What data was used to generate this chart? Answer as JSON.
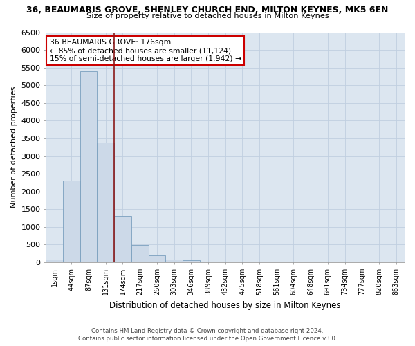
{
  "title1": "36, BEAUMARIS GROVE, SHENLEY CHURCH END, MILTON KEYNES, MK5 6EN",
  "title2": "Size of property relative to detached houses in Milton Keynes",
  "xlabel": "Distribution of detached houses by size in Milton Keynes",
  "ylabel": "Number of detached properties",
  "categories": [
    "1sqm",
    "44sqm",
    "87sqm",
    "131sqm",
    "174sqm",
    "217sqm",
    "260sqm",
    "303sqm",
    "346sqm",
    "389sqm",
    "432sqm",
    "475sqm",
    "518sqm",
    "561sqm",
    "604sqm",
    "648sqm",
    "691sqm",
    "734sqm",
    "777sqm",
    "820sqm",
    "863sqm"
  ],
  "values": [
    75,
    2300,
    5400,
    3380,
    1310,
    480,
    190,
    80,
    55,
    10,
    10,
    10,
    0,
    0,
    0,
    0,
    0,
    0,
    0,
    0,
    0
  ],
  "bar_color": "#ccd9e8",
  "bar_edge_color": "#7a9fbe",
  "vline_color": "#8b1a1a",
  "annotation_text": "36 BEAUMARIS GROVE: 176sqm\n← 85% of detached houses are smaller (11,124)\n15% of semi-detached houses are larger (1,942) →",
  "annotation_box_color": "#ffffff",
  "annotation_box_edge": "#cc0000",
  "ylim": [
    0,
    6500
  ],
  "yticks": [
    0,
    500,
    1000,
    1500,
    2000,
    2500,
    3000,
    3500,
    4000,
    4500,
    5000,
    5500,
    6000,
    6500
  ],
  "grid_color": "#c0cfe0",
  "bg_color": "#dce6f0",
  "footer1": "Contains HM Land Registry data © Crown copyright and database right 2024.",
  "footer2": "Contains public sector information licensed under the Open Government Licence v3.0."
}
